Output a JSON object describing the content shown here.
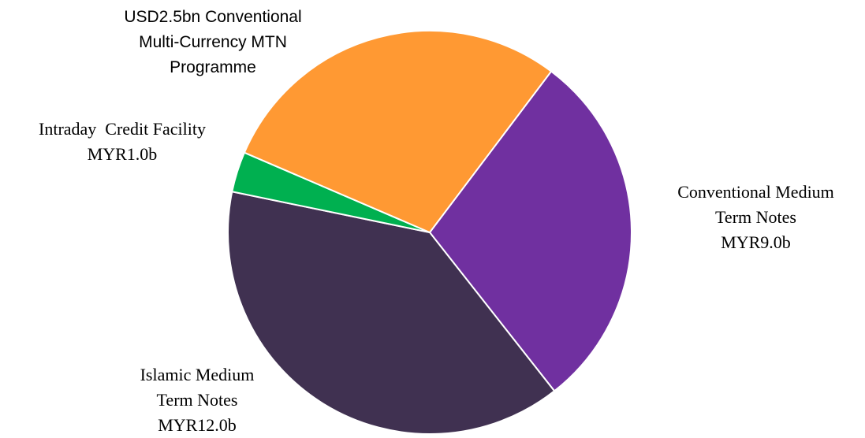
{
  "chart_data": {
    "type": "pie",
    "start_angle_deg": 37,
    "slices": [
      {
        "label_lines": [
          "Conventional Medium",
          "Term Notes",
          "MYR9.0b"
        ],
        "value": 9.0,
        "color": "#7030A0"
      },
      {
        "label_lines": [
          "Islamic Medium",
          "Term Notes",
          "MYR12.0b"
        ],
        "value": 12.0,
        "color": "#403151"
      },
      {
        "label_lines": [
          "Intraday  Credit Facility",
          "MYR1.0b"
        ],
        "value": 1.0,
        "color": "#00B050"
      },
      {
        "label_lines": [
          "USD2.5bn Conventional",
          "Multi-Currency MTN",
          "Programme"
        ],
        "value": 8.9,
        "color": "#FF9933"
      }
    ]
  }
}
